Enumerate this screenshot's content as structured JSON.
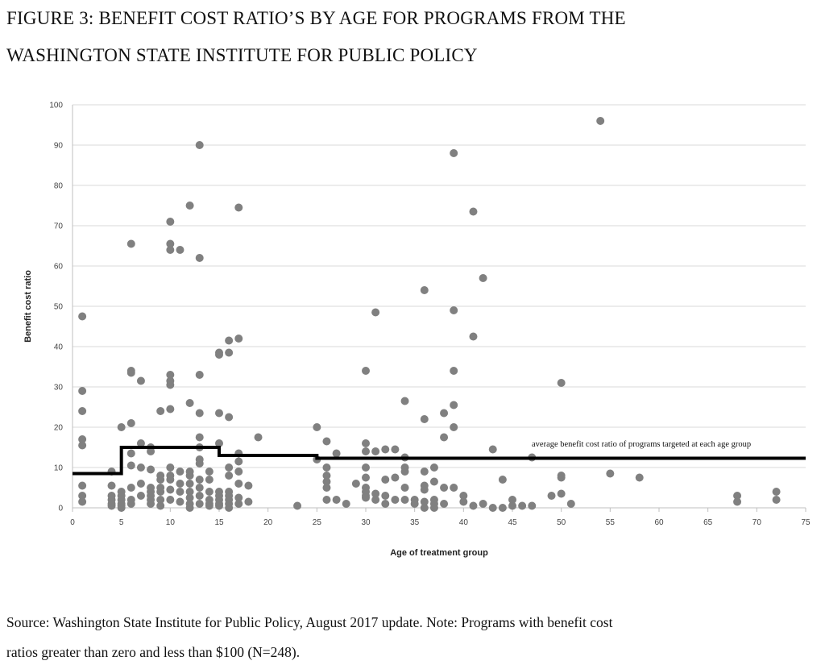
{
  "title_line1": "FIGURE 3: BENEFIT COST RATIO’S BY AGE FOR PROGRAMS FROM THE",
  "title_line2": "WASHINGTON STATE INSTITUTE FOR PUBLIC POLICY",
  "source_line1": "Source: Washington State Institute for Public Policy, August 2017 update. Note: Programs with benefit cost",
  "source_line2": "ratios greater than zero and less than $100 (N=248).",
  "chart_data": {
    "type": "scatter",
    "xlabel": "Age of treatment group",
    "ylabel": "Benefit cost ratio",
    "xlim": [
      0,
      75
    ],
    "ylim": [
      0,
      100
    ],
    "xticks": [
      0,
      5,
      10,
      15,
      20,
      25,
      30,
      35,
      40,
      45,
      50,
      55,
      60,
      65,
      70,
      75
    ],
    "yticks": [
      0,
      10,
      20,
      30,
      40,
      50,
      60,
      70,
      80,
      90,
      100
    ],
    "grid": "horizontal",
    "point_color": "#808080",
    "line_color": "#000000",
    "points": [
      {
        "x": 1,
        "ys": [
          47.5,
          29,
          24,
          17,
          15.5,
          5.5,
          3,
          1.5
        ]
      },
      {
        "x": 4,
        "ys": [
          9,
          5.5,
          3,
          2,
          1,
          0.5
        ]
      },
      {
        "x": 5,
        "ys": [
          20,
          4,
          3,
          2,
          1,
          0.5,
          0
        ]
      },
      {
        "x": 6,
        "ys": [
          65.5,
          34,
          33.5,
          21,
          13.5,
          10.5,
          5,
          2,
          1
        ]
      },
      {
        "x": 7,
        "ys": [
          31.5,
          16,
          10,
          6,
          3
        ]
      },
      {
        "x": 8,
        "ys": [
          15,
          14,
          9.5,
          5,
          4,
          3,
          2,
          1
        ]
      },
      {
        "x": 9,
        "ys": [
          24,
          8,
          7,
          5,
          4,
          2,
          0.5
        ]
      },
      {
        "x": 10,
        "ys": [
          71,
          65.5,
          64,
          33,
          31.5,
          30.5,
          24.5,
          10,
          8,
          7,
          4.5,
          2
        ]
      },
      {
        "x": 11,
        "ys": [
          64,
          9,
          6,
          4,
          1.5
        ]
      },
      {
        "x": 12,
        "ys": [
          75,
          26,
          9,
          8,
          6,
          4,
          2.5,
          1,
          0
        ]
      },
      {
        "x": 13,
        "ys": [
          90,
          62,
          33,
          23.5,
          17.5,
          15,
          12,
          11,
          7,
          5,
          3,
          1
        ]
      },
      {
        "x": 14,
        "ys": [
          9,
          7,
          4,
          2,
          1,
          0.5
        ]
      },
      {
        "x": 15,
        "ys": [
          38.5,
          38,
          23.5,
          16,
          4,
          3,
          2,
          1,
          0.5
        ]
      },
      {
        "x": 16,
        "ys": [
          41.5,
          38.5,
          22.5,
          10,
          8,
          4,
          3,
          2,
          1,
          0
        ]
      },
      {
        "x": 17,
        "ys": [
          74.5,
          42,
          13.5,
          11.5,
          9,
          6,
          2.5,
          1
        ]
      },
      {
        "x": 18,
        "ys": [
          5.5,
          1.5
        ]
      },
      {
        "x": 19,
        "ys": [
          17.5
        ]
      },
      {
        "x": 23,
        "ys": [
          0.5
        ]
      },
      {
        "x": 25,
        "ys": [
          20,
          12
        ]
      },
      {
        "x": 26,
        "ys": [
          16.5,
          10,
          8,
          6.5,
          5,
          2
        ]
      },
      {
        "x": 27,
        "ys": [
          13.5,
          2
        ]
      },
      {
        "x": 28,
        "ys": [
          1
        ]
      },
      {
        "x": 29,
        "ys": [
          6
        ]
      },
      {
        "x": 30,
        "ys": [
          34,
          16,
          14,
          10,
          7.5,
          5,
          4,
          3,
          2.5
        ]
      },
      {
        "x": 31,
        "ys": [
          48.5,
          14,
          3.5,
          2
        ]
      },
      {
        "x": 32,
        "ys": [
          14.5,
          7,
          3,
          1
        ]
      },
      {
        "x": 33,
        "ys": [
          14.5,
          7.5,
          2
        ]
      },
      {
        "x": 34,
        "ys": [
          26.5,
          12.5,
          10,
          9,
          5,
          2
        ]
      },
      {
        "x": 35,
        "ys": [
          2,
          1
        ]
      },
      {
        "x": 36,
        "ys": [
          54,
          22,
          9,
          5.5,
          4.5,
          1.5,
          0
        ]
      },
      {
        "x": 37,
        "ys": [
          10,
          6.5,
          2,
          1,
          0
        ]
      },
      {
        "x": 38,
        "ys": [
          23.5,
          17.5,
          5,
          1
        ]
      },
      {
        "x": 39,
        "ys": [
          88,
          49,
          34,
          25.5,
          20,
          5
        ]
      },
      {
        "x": 40,
        "ys": [
          3,
          1.5
        ]
      },
      {
        "x": 41,
        "ys": [
          73.5,
          42.5,
          0.5
        ]
      },
      {
        "x": 42,
        "ys": [
          57,
          1
        ]
      },
      {
        "x": 43,
        "ys": [
          14.5,
          0
        ]
      },
      {
        "x": 44,
        "ys": [
          7,
          0
        ]
      },
      {
        "x": 45,
        "ys": [
          2,
          0.5
        ]
      },
      {
        "x": 46,
        "ys": [
          0.5
        ]
      },
      {
        "x": 47,
        "ys": [
          12.5,
          0.5
        ]
      },
      {
        "x": 49,
        "ys": [
          3
        ]
      },
      {
        "x": 50,
        "ys": [
          31,
          8,
          7.5,
          3.5
        ]
      },
      {
        "x": 51,
        "ys": [
          1
        ]
      },
      {
        "x": 54,
        "ys": [
          96
        ]
      },
      {
        "x": 55,
        "ys": [
          8.5
        ]
      },
      {
        "x": 58,
        "ys": [
          7.5
        ]
      },
      {
        "x": 68,
        "ys": [
          3,
          1.5
        ]
      },
      {
        "x": 72,
        "ys": [
          4,
          2
        ]
      }
    ],
    "average_step_line": [
      {
        "from": 0,
        "to": 5,
        "value": 8.5
      },
      {
        "from": 5,
        "to": 15,
        "value": 15
      },
      {
        "from": 15,
        "to": 25,
        "value": 13
      },
      {
        "from": 25,
        "to": 75,
        "value": 12.3
      }
    ],
    "annotation": "average benefit cost ratio of programs targeted at each age group"
  }
}
